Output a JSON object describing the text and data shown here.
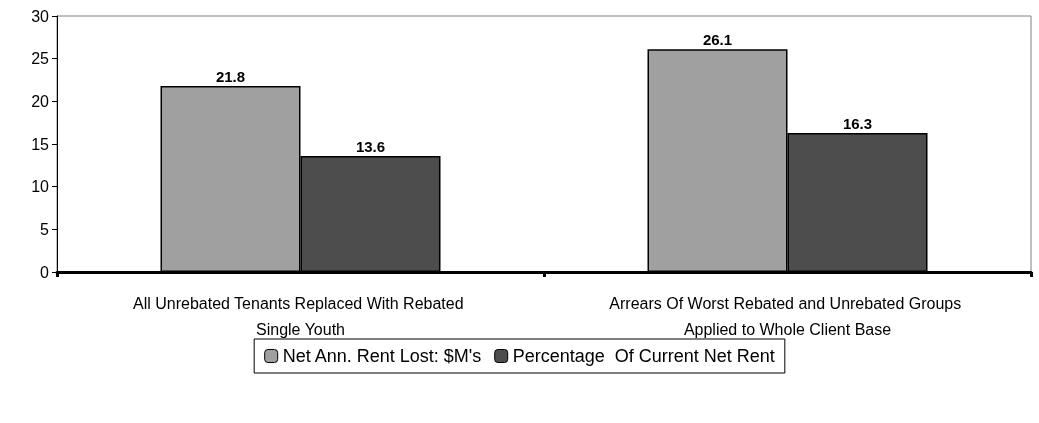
{
  "chart_data": {
    "type": "bar",
    "categories": [
      "All Unrebated Tenants Replaced With Rebated Single Youth",
      "Arrears Of Worst Rebated and Unrebated Groups Applied to Whole Client Base"
    ],
    "series": [
      {
        "name": "Net Ann. Rent Lost: $M's",
        "color": "#a0a0a0",
        "values": [
          21.8,
          26.1
        ]
      },
      {
        "name": "Percentage  Of Current Net Rent",
        "color": "#4d4d4d",
        "values": [
          13.6,
          16.3
        ]
      }
    ],
    "ylim": [
      0,
      30
    ],
    "yticks": [
      0,
      5,
      10,
      15,
      20,
      25,
      30
    ],
    "grid": false,
    "legend": "bottom",
    "data_labels": true
  }
}
